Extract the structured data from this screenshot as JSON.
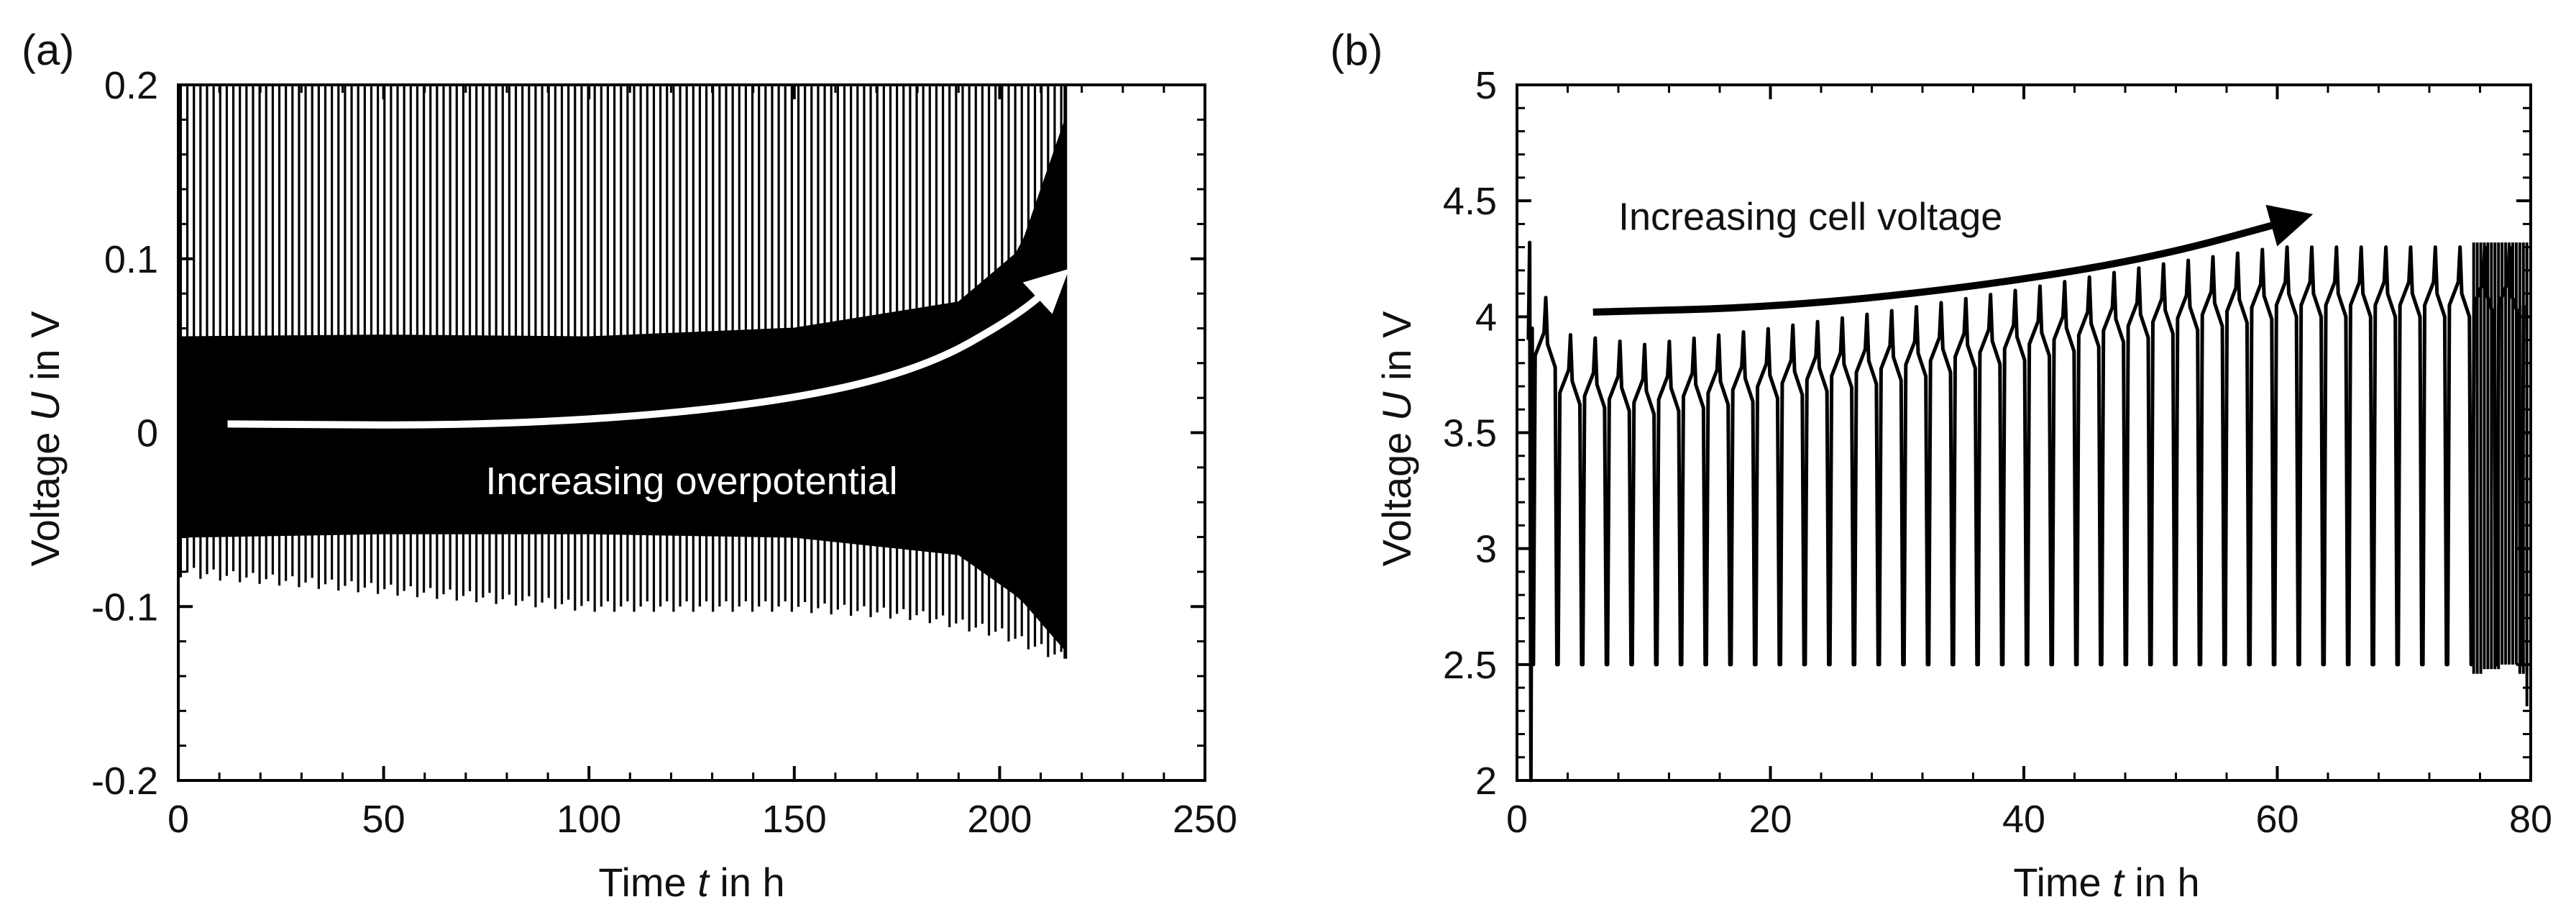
{
  "colors": {
    "line": "#000000",
    "text": "#111111",
    "background": "#ffffff",
    "annotation_a": "#ffffff",
    "annotation_b": "#000000"
  },
  "chart_data": [
    {
      "panel_label": "(a)",
      "type": "line",
      "title": "",
      "xlabel_prefix": "Time ",
      "xlabel_var": "t",
      "xlabel_suffix": " in h",
      "ylabel_prefix": "Voltage ",
      "ylabel_var": "U",
      "ylabel_suffix": " in V",
      "xlim": [
        0,
        250
      ],
      "ylim": [
        -0.2,
        0.2
      ],
      "xticks": [
        0,
        50,
        100,
        150,
        200,
        250
      ],
      "yticks": [
        -0.2,
        -0.1,
        0,
        0.1,
        0.2
      ],
      "xtick_labels": [
        "0",
        "50",
        "100",
        "150",
        "200",
        "250"
      ],
      "ytick_labels": [
        "-0.2",
        "-0.1",
        "0",
        "0.1",
        "0.2"
      ],
      "grid": false,
      "series": [
        {
          "name": "Voltage",
          "description": "Dense symmetric cycling; spikes exceed 0.2 V, band widens until end",
          "t_end": 216,
          "spike_upper": 0.2,
          "band_envelope": [
            {
              "t": 0,
              "upper": 0.055,
              "lower": -0.06
            },
            {
              "t": 50,
              "upper": 0.056,
              "lower": -0.058
            },
            {
              "t": 100,
              "upper": 0.055,
              "lower": -0.058
            },
            {
              "t": 150,
              "upper": 0.06,
              "lower": -0.06
            },
            {
              "t": 190,
              "upper": 0.075,
              "lower": -0.07
            },
            {
              "t": 205,
              "upper": 0.105,
              "lower": -0.095
            },
            {
              "t": 216,
              "upper": 0.18,
              "lower": -0.125
            }
          ],
          "lower_spike_envelope": [
            {
              "t": 0,
              "value": -0.08
            },
            {
              "t": 50,
              "value": -0.09
            },
            {
              "t": 100,
              "value": -0.1
            },
            {
              "t": 150,
              "value": -0.1
            },
            {
              "t": 180,
              "value": -0.105
            },
            {
              "t": 200,
              "value": -0.115
            },
            {
              "t": 216,
              "value": -0.13
            }
          ]
        }
      ],
      "annotation": {
        "text": "Increasing overpotential",
        "text_at": [
          125,
          -0.028
        ],
        "arrow_path": [
          [
            12,
            0.005
          ],
          [
            80,
            0.004
          ],
          [
            140,
            0.015
          ],
          [
            180,
            0.035
          ],
          [
            205,
            0.068
          ],
          [
            215,
            0.09
          ]
        ]
      }
    },
    {
      "panel_label": "(b)",
      "type": "line",
      "title": "",
      "xlabel_prefix": "Time ",
      "xlabel_var": "t",
      "xlabel_suffix": " in h",
      "ylabel_prefix": "Voltage ",
      "ylabel_var": "U",
      "ylabel_suffix": " in V",
      "xlim": [
        0,
        80
      ],
      "ylim": [
        2,
        5
      ],
      "xticks": [
        0,
        20,
        40,
        60,
        80
      ],
      "yticks": [
        2,
        2.5,
        3,
        3.5,
        4,
        4.5,
        5
      ],
      "xtick_labels": [
        "0",
        "20",
        "40",
        "60",
        "80"
      ],
      "ytick_labels": [
        "2",
        "2.5",
        "3",
        "3.5",
        "4",
        "4.5",
        "5"
      ],
      "grid": false,
      "series": [
        {
          "name": "Cell voltage",
          "description": "Charge/discharge cycles between 2.5 V and a peak rising to 4.3 V",
          "cycle_period_h": 1.95,
          "t_start": 1.2,
          "t_end": 79.5,
          "min_voltage": 2.5,
          "plateau_offset": 0.2,
          "peak_envelope": [
            {
              "t": 1,
              "value": 4.3
            },
            {
              "t": 3,
              "value": 3.93
            },
            {
              "t": 10,
              "value": 3.88
            },
            {
              "t": 20,
              "value": 3.95
            },
            {
              "t": 30,
              "value": 4.03
            },
            {
              "t": 40,
              "value": 4.12
            },
            {
              "t": 50,
              "value": 4.22
            },
            {
              "t": 60,
              "value": 4.3
            },
            {
              "t": 80,
              "value": 4.3
            }
          ]
        }
      ],
      "annotation": {
        "text": "Increasing cell voltage",
        "text_at": [
          8,
          4.43
        ],
        "arrow_path": [
          [
            6,
            4.02
          ],
          [
            20,
            4.04
          ],
          [
            35,
            4.12
          ],
          [
            50,
            4.25
          ],
          [
            62,
            4.43
          ]
        ]
      }
    }
  ]
}
